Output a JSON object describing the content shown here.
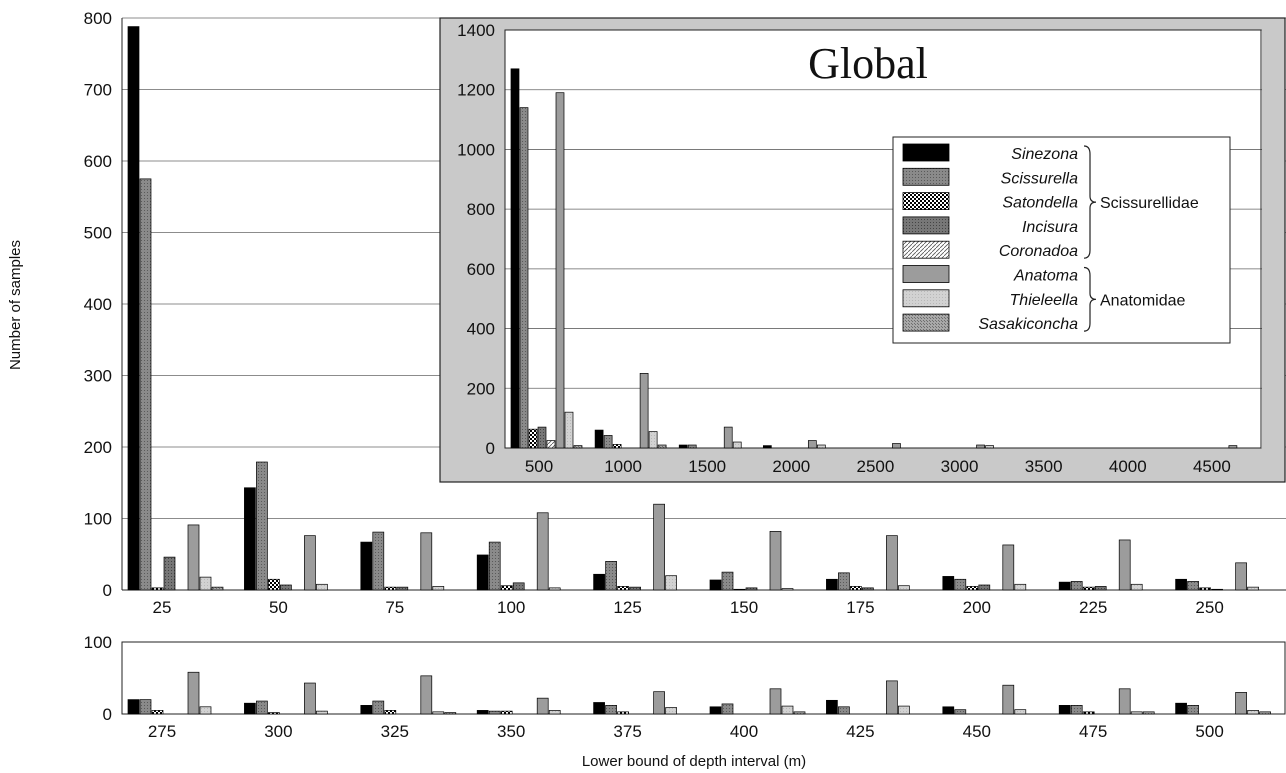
{
  "chart_data": [
    {
      "id": "upper",
      "type": "bar",
      "ylabel": "Number of samples",
      "ylim": [
        0,
        800
      ],
      "yticks": [
        0,
        100,
        200,
        300,
        400,
        500,
        600,
        700,
        800
      ],
      "grid": true,
      "categories": [
        "25",
        "50",
        "75",
        "100",
        "125",
        "150",
        "175",
        "200",
        "225",
        "250"
      ],
      "series": [
        {
          "name": "Sinezona",
          "values": [
            788,
            143,
            67,
            49,
            22,
            14,
            15,
            19,
            11,
            15
          ]
        },
        {
          "name": "Scissurella",
          "values": [
            575,
            179,
            81,
            67,
            40,
            25,
            24,
            15,
            12,
            12
          ]
        },
        {
          "name": "Satondella",
          "values": [
            3,
            15,
            4,
            6,
            5,
            1,
            5,
            5,
            4,
            3
          ]
        },
        {
          "name": "Incisura",
          "values": [
            46,
            7,
            4,
            10,
            4,
            3,
            3,
            7,
            5,
            1
          ]
        },
        {
          "name": "Coronadoa",
          "values": [
            0,
            0,
            0,
            0,
            0,
            0,
            0,
            0,
            0,
            0
          ]
        },
        {
          "name": "Anatoma",
          "values": [
            91,
            76,
            80,
            108,
            120,
            82,
            76,
            63,
            70,
            38
          ]
        },
        {
          "name": "Thieleella",
          "values": [
            18,
            8,
            5,
            3,
            20,
            2,
            6,
            8,
            8,
            4
          ]
        },
        {
          "name": "Sasakiconcha",
          "values": [
            4,
            0,
            0,
            0,
            0,
            0,
            0,
            0,
            0,
            0
          ]
        }
      ]
    },
    {
      "id": "lower",
      "type": "bar",
      "xlabel": "Lower bound of depth interval (m)",
      "ylim": [
        0,
        100
      ],
      "yticks": [
        0,
        100
      ],
      "grid": false,
      "categories": [
        "275",
        "300",
        "325",
        "350",
        "375",
        "400",
        "425",
        "450",
        "475",
        "500"
      ],
      "series": [
        {
          "name": "Sinezona",
          "values": [
            20,
            15,
            12,
            5,
            16,
            10,
            19,
            10,
            12,
            15
          ]
        },
        {
          "name": "Scissurella",
          "values": [
            20,
            18,
            18,
            4,
            12,
            14,
            10,
            6,
            12,
            12
          ]
        },
        {
          "name": "Satondella",
          "values": [
            5,
            2,
            5,
            4,
            3,
            0,
            0,
            0,
            3,
            0
          ]
        },
        {
          "name": "Incisura",
          "values": [
            0,
            0,
            0,
            0,
            0,
            0,
            0,
            0,
            0,
            0
          ]
        },
        {
          "name": "Coronadoa",
          "values": [
            0,
            0,
            0,
            0,
            0,
            0,
            0,
            0,
            0,
            0
          ]
        },
        {
          "name": "Anatoma",
          "values": [
            58,
            43,
            53,
            22,
            31,
            35,
            46,
            40,
            35,
            30
          ]
        },
        {
          "name": "Thieleella",
          "values": [
            10,
            4,
            3,
            5,
            9,
            11,
            11,
            6,
            3,
            5
          ]
        },
        {
          "name": "Sasakiconcha",
          "values": [
            0,
            0,
            2,
            0,
            0,
            3,
            0,
            0,
            3,
            3
          ]
        }
      ]
    },
    {
      "id": "inset",
      "type": "bar",
      "title": "Global",
      "ylim": [
        0,
        1400
      ],
      "yticks": [
        0,
        200,
        400,
        600,
        800,
        1000,
        1200,
        1400
      ],
      "grid": true,
      "categories": [
        "500",
        "1000",
        "1500",
        "2000",
        "2500",
        "3000",
        "3500",
        "4000",
        "4500"
      ],
      "series": [
        {
          "name": "Sinezona",
          "values": [
            1270,
            60,
            10,
            8,
            0,
            0,
            0,
            0,
            0
          ]
        },
        {
          "name": "Scissurella",
          "values": [
            1140,
            42,
            10,
            0,
            0,
            0,
            0,
            0,
            0
          ]
        },
        {
          "name": "Satondella",
          "values": [
            63,
            12,
            0,
            0,
            0,
            0,
            0,
            0,
            0
          ]
        },
        {
          "name": "Incisura",
          "values": [
            70,
            0,
            0,
            0,
            0,
            0,
            0,
            0,
            0
          ]
        },
        {
          "name": "Coronadoa",
          "values": [
            25,
            0,
            0,
            0,
            0,
            0,
            0,
            0,
            0
          ]
        },
        {
          "name": "Anatoma",
          "values": [
            1190,
            250,
            70,
            25,
            15,
            10,
            0,
            0,
            8
          ]
        },
        {
          "name": "Thieleella",
          "values": [
            120,
            55,
            20,
            10,
            0,
            8,
            0,
            0,
            0
          ]
        },
        {
          "name": "Sasakiconcha",
          "values": [
            8,
            10,
            0,
            0,
            0,
            0,
            0,
            0,
            0
          ]
        }
      ],
      "legend": {
        "placement": "top-right",
        "entries": [
          "Sinezona",
          "Scissurella",
          "Satondella",
          "Incisura",
          "Coronadoa",
          "Anatoma",
          "Thieleella",
          "Sasakiconcha"
        ],
        "groups": [
          {
            "label": "Scissurellidae",
            "members": [
              "Sinezona",
              "Scissurella",
              "Satondella",
              "Incisura",
              "Coronadoa"
            ]
          },
          {
            "label": "Anatomidae",
            "members": [
              "Anatoma",
              "Thieleella",
              "Sasakiconcha"
            ]
          }
        ]
      }
    }
  ]
}
